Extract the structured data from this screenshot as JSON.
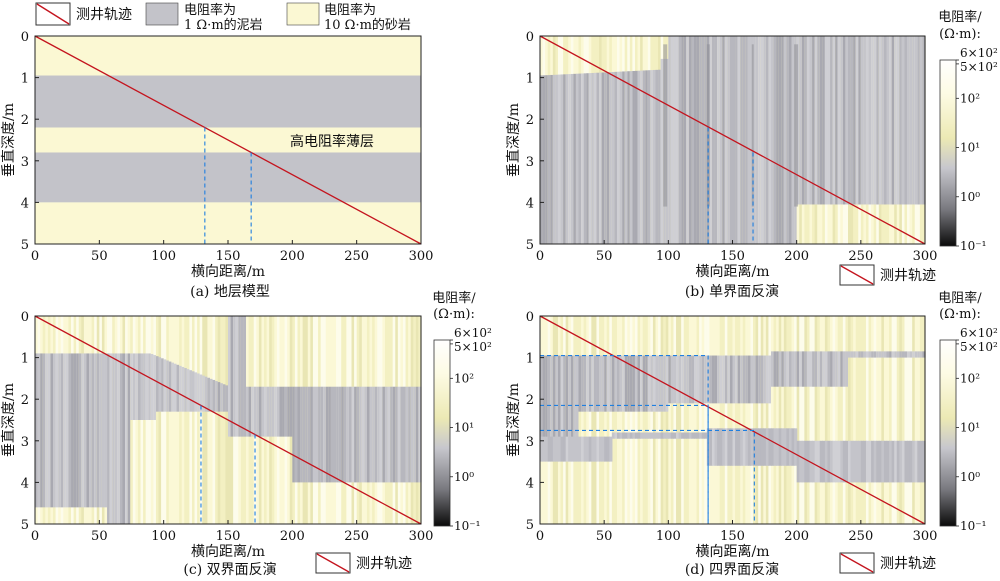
{
  "legend": {
    "well_label": "测井轨迹",
    "mudstone_label_line1": "电阻率为",
    "mudstone_label_line2": "1 Ω·m的泥岩",
    "sandstone_label_line1": "电阻率为",
    "sandstone_label_line2": "10 Ω·m的砂岩"
  },
  "colors": {
    "sandstone": "#fbf8d3",
    "mudstone": "#c3c3c9",
    "well_line": "#c4141e",
    "boundary_dash": "#1f7fe0"
  },
  "axes_common": {
    "xlabel": "横向距离/m",
    "ylabel": "垂直深度/m",
    "xlim": [
      0,
      300
    ],
    "ylim": [
      0,
      5
    ],
    "xticks": [
      "0",
      "50",
      "100",
      "150",
      "200",
      "250",
      "300"
    ],
    "yticks": [
      "0",
      "1",
      "2",
      "3",
      "4",
      "5"
    ]
  },
  "colorbar": {
    "title_line1": "电阻率/",
    "title_line2": "(Ω·m):",
    "scale": "log",
    "range": [
      0.1,
      600
    ],
    "ticks": [
      "6×10²",
      "5×10²",
      "10²",
      "10¹",
      "10⁰",
      "10⁻¹"
    ]
  },
  "chart_data": [
    {
      "type": "heatmap",
      "caption": "(a) 地层模型",
      "annotation": "高电阻率薄层",
      "layers": [
        {
          "top": 0,
          "bottom": 0.95,
          "resistivity": 10
        },
        {
          "top": 0.95,
          "bottom": 2.2,
          "resistivity": 1
        },
        {
          "top": 2.2,
          "bottom": 2.8,
          "resistivity": 10
        },
        {
          "top": 2.8,
          "bottom": 4.0,
          "resistivity": 1
        },
        {
          "top": 4.0,
          "bottom": 5,
          "resistivity": 10
        }
      ],
      "well_trajectory": [
        [
          0,
          0
        ],
        [
          300,
          5
        ]
      ],
      "boundary_crossings": [
        {
          "x": 132,
          "depth": 2.2
        },
        {
          "x": 168,
          "depth": 2.8
        }
      ]
    },
    {
      "type": "heatmap",
      "caption": "(b) 单界面反演",
      "well_trajectory": [
        [
          0,
          0
        ],
        [
          300,
          5
        ]
      ],
      "boundary_crossings": [
        {
          "x": 131,
          "depth": 2.2
        },
        {
          "x": 166,
          "depth": 2.8
        }
      ]
    },
    {
      "type": "heatmap",
      "caption": "(c) 双界面反演",
      "well_trajectory": [
        [
          0,
          0
        ],
        [
          300,
          5
        ]
      ],
      "boundary_crossings": [
        {
          "x": 129,
          "depth": 2.15
        },
        {
          "x": 171,
          "depth": 2.85
        }
      ]
    },
    {
      "type": "heatmap",
      "caption": "(d) 四界面反演",
      "well_trajectory": [
        [
          0,
          0
        ],
        [
          300,
          5
        ]
      ],
      "boundary_crossings": [
        {
          "x": 131,
          "depth": 2.2
        },
        {
          "x": 167,
          "depth": 2.8
        }
      ],
      "guide_lines": [
        {
          "depth": 0.95,
          "x_end": 131
        },
        {
          "depth": 2.15,
          "x_end": 131
        },
        {
          "depth": 2.75,
          "x_end": 167
        }
      ]
    }
  ]
}
